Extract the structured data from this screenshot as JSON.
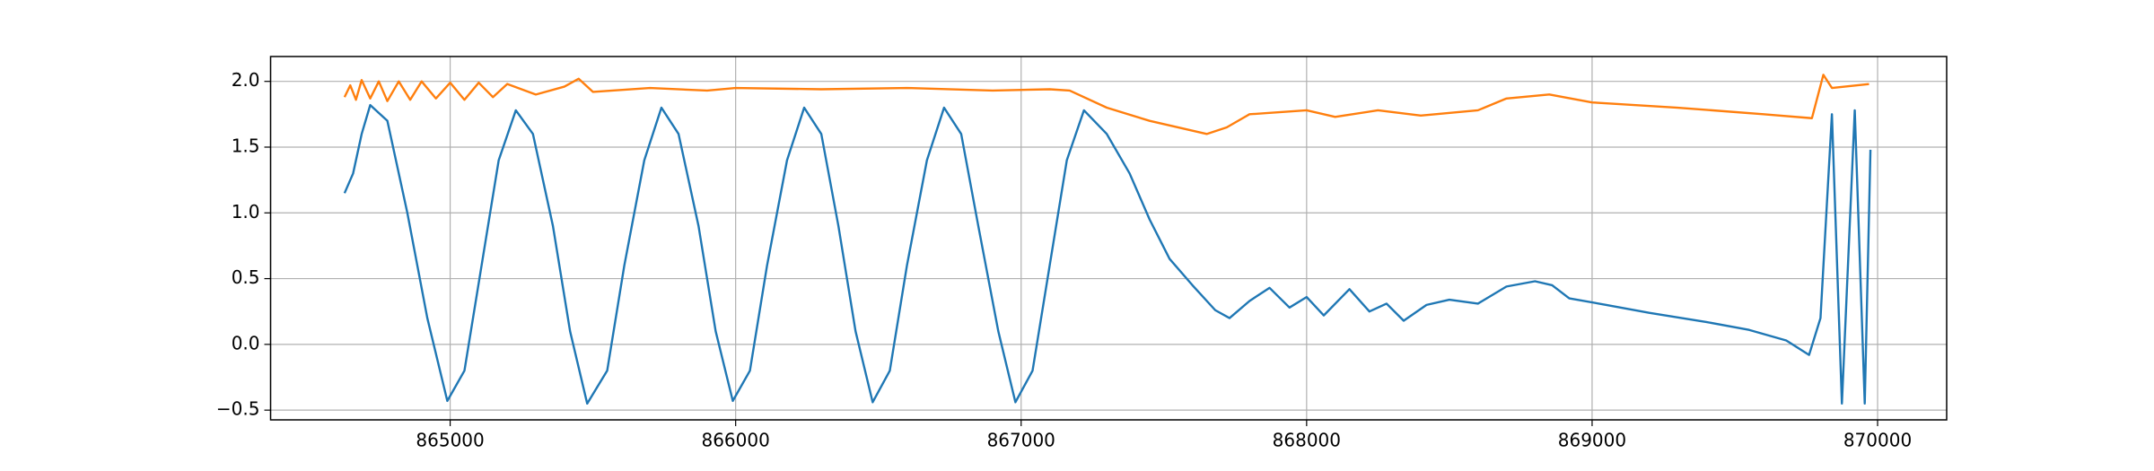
{
  "chart_data": {
    "type": "line",
    "xlim": [
      864371,
      870242
    ],
    "ylim": [
      -0.574,
      2.189
    ],
    "xticks": [
      865000,
      866000,
      867000,
      868000,
      869000,
      870000
    ],
    "yticks": [
      {
        "value": -0.5,
        "label": "−0.5"
      },
      {
        "value": 0,
        "label": "0.0"
      },
      {
        "value": 0.5,
        "label": "0.5"
      },
      {
        "value": 1,
        "label": "1.0"
      },
      {
        "value": 1.5,
        "label": "1.5"
      },
      {
        "value": 2,
        "label": "2.0"
      }
    ],
    "grid": true,
    "series": [
      {
        "color": "#1f77b4",
        "x": [
          864630,
          864660,
          864690,
          864720,
          864780,
          864850,
          864920,
          864990,
          865050,
          865110,
          865170,
          865230,
          865290,
          865360,
          865420,
          865480,
          865550,
          865610,
          865680,
          865740,
          865800,
          865870,
          865930,
          865990,
          866050,
          866110,
          866180,
          866240,
          866300,
          866360,
          866420,
          866480,
          866540,
          866600,
          866670,
          866730,
          866790,
          866850,
          866920,
          866980,
          867040,
          867100,
          867160,
          867220,
          867300,
          867380,
          867450,
          867520,
          867600,
          867680,
          867730,
          867800,
          867870,
          867940,
          868000,
          868060,
          868150,
          868220,
          868280,
          868340,
          868420,
          868500,
          868600,
          868700,
          868800,
          868860,
          868920,
          869050,
          869200,
          869400,
          869550,
          869680,
          869760,
          869800,
          869840,
          869875,
          869920,
          869955,
          869975
        ],
        "values": [
          1.15,
          1.3,
          1.6,
          1.82,
          1.7,
          1.0,
          0.2,
          -0.43,
          -0.2,
          0.6,
          1.4,
          1.78,
          1.6,
          0.9,
          0.1,
          -0.45,
          -0.2,
          0.6,
          1.4,
          1.8,
          1.6,
          0.9,
          0.1,
          -0.43,
          -0.2,
          0.6,
          1.4,
          1.8,
          1.6,
          0.9,
          0.1,
          -0.44,
          -0.2,
          0.6,
          1.4,
          1.8,
          1.6,
          0.9,
          0.1,
          -0.44,
          -0.2,
          0.6,
          1.4,
          1.78,
          1.6,
          1.3,
          0.95,
          0.65,
          0.45,
          0.26,
          0.2,
          0.33,
          0.43,
          0.28,
          0.36,
          0.22,
          0.42,
          0.25,
          0.31,
          0.18,
          0.3,
          0.34,
          0.31,
          0.44,
          0.48,
          0.45,
          0.35,
          0.3,
          0.24,
          0.17,
          0.11,
          0.03,
          -0.08,
          0.2,
          1.75,
          -0.45,
          1.78,
          -0.45,
          1.48
        ]
      },
      {
        "color": "#ff7f0e",
        "x": [
          864630,
          864650,
          864670,
          864690,
          864720,
          864750,
          864780,
          864820,
          864860,
          864900,
          864950,
          865000,
          865050,
          865100,
          865150,
          865200,
          865300,
          865400,
          865450,
          865500,
          865700,
          865900,
          866000,
          866300,
          866600,
          866900,
          867100,
          867170,
          867300,
          867450,
          867650,
          867720,
          867800,
          868000,
          868100,
          868250,
          868400,
          868600,
          868700,
          868850,
          869000,
          869300,
          869600,
          869770,
          869810,
          869840,
          869970
        ],
        "values": [
          1.88,
          1.97,
          1.86,
          2.01,
          1.87,
          2.0,
          1.85,
          2.0,
          1.86,
          2.0,
          1.87,
          1.99,
          1.86,
          1.99,
          1.88,
          1.98,
          1.9,
          1.96,
          2.02,
          1.92,
          1.95,
          1.93,
          1.95,
          1.94,
          1.95,
          1.93,
          1.94,
          1.93,
          1.8,
          1.7,
          1.6,
          1.65,
          1.75,
          1.78,
          1.73,
          1.78,
          1.74,
          1.78,
          1.87,
          1.9,
          1.84,
          1.8,
          1.75,
          1.72,
          2.05,
          1.95,
          1.98
        ]
      }
    ]
  }
}
